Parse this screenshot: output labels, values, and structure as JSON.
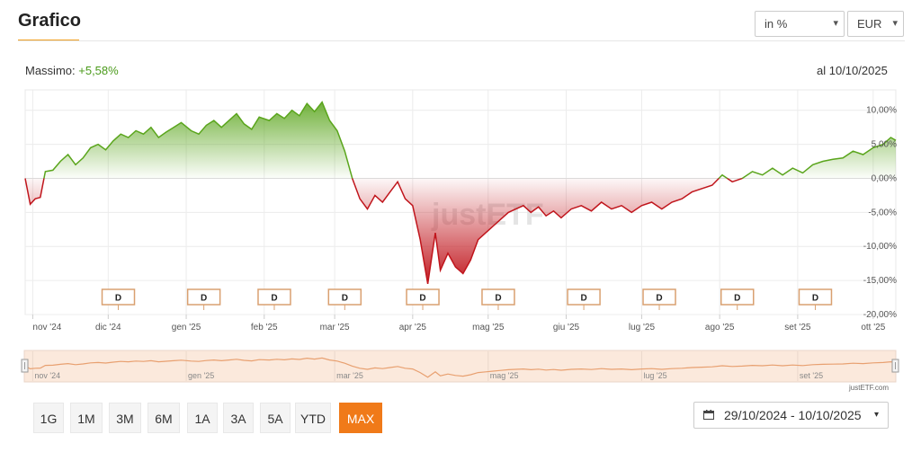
{
  "header": {
    "title": "Grafico"
  },
  "controls": {
    "unit_select": "in %",
    "currency_select": "EUR",
    "chevron": "▾"
  },
  "summary": {
    "max_label": "Massimo:",
    "max_value": "+5,58%",
    "date_label": "al 10/10/2025"
  },
  "range_buttons": [
    "1G",
    "1M",
    "3M",
    "6M",
    "1A",
    "3A",
    "5A",
    "YTD",
    "MAX"
  ],
  "active_range": "MAX",
  "date_range": {
    "text": "29/10/2024 - 10/10/2025",
    "icon": "calendar-icon",
    "caret": "▾"
  },
  "credit": "justETF.com",
  "watermark": "justETF",
  "colors": {
    "positive": "#5aa51c",
    "negative": "#c0151c",
    "accent": "#f07a19",
    "navigator_line": "#e8a070"
  },
  "chart_data": {
    "type": "area",
    "y_axis_position": "right",
    "ylim": [
      -20,
      13
    ],
    "yticks": [
      10,
      5,
      0,
      -5,
      -10,
      -15,
      -20
    ],
    "ytick_labels": [
      "10,00%",
      "5,00%",
      "0,00%",
      "-5,00%",
      "-10,00%",
      "-15,00%",
      "-20,00%"
    ],
    "x_tick_labels": [
      "nov '24",
      "dic '24",
      "gen '25",
      "feb '25",
      "mar '25",
      "apr '25",
      "mag '25",
      "giu '25",
      "lug '25",
      "ago '25",
      "set '25",
      "ott '25"
    ],
    "x_tick_dates": [
      "2024-11-01",
      "2024-12-01",
      "2025-01-01",
      "2025-02-01",
      "2025-03-01",
      "2025-04-01",
      "2025-05-01",
      "2025-06-01",
      "2025-07-01",
      "2025-08-01",
      "2025-09-01",
      "2025-10-01"
    ],
    "x_range": [
      "2024-10-29",
      "2025-10-10"
    ],
    "grid": true,
    "baseline": 0,
    "dividend_label": "D",
    "dividend_dates": [
      "2024-12-05",
      "2025-01-08",
      "2025-02-05",
      "2025-03-05",
      "2025-04-05",
      "2025-05-05",
      "2025-06-08",
      "2025-07-08",
      "2025-08-08",
      "2025-09-08"
    ],
    "series": [
      {
        "points": [
          [
            "2024-10-29",
            0.0
          ],
          [
            "2024-10-31",
            -3.8
          ],
          [
            "2024-11-02",
            -3.0
          ],
          [
            "2024-11-04",
            -2.8
          ],
          [
            "2024-11-06",
            1.0
          ],
          [
            "2024-11-09",
            1.2
          ],
          [
            "2024-11-12",
            2.5
          ],
          [
            "2024-11-15",
            3.5
          ],
          [
            "2024-11-18",
            2.0
          ],
          [
            "2024-11-21",
            3.0
          ],
          [
            "2024-11-24",
            4.5
          ],
          [
            "2024-11-27",
            5.0
          ],
          [
            "2024-11-30",
            4.2
          ],
          [
            "2024-12-03",
            5.5
          ],
          [
            "2024-12-06",
            6.5
          ],
          [
            "2024-12-09",
            6.0
          ],
          [
            "2024-12-12",
            7.0
          ],
          [
            "2024-12-15",
            6.5
          ],
          [
            "2024-12-18",
            7.5
          ],
          [
            "2024-12-21",
            6.0
          ],
          [
            "2024-12-24",
            6.8
          ],
          [
            "2024-12-27",
            7.5
          ],
          [
            "2024-12-30",
            8.2
          ],
          [
            "2025-01-03",
            7.0
          ],
          [
            "2025-01-06",
            6.5
          ],
          [
            "2025-01-09",
            7.8
          ],
          [
            "2025-01-12",
            8.5
          ],
          [
            "2025-01-15",
            7.5
          ],
          [
            "2025-01-18",
            8.5
          ],
          [
            "2025-01-21",
            9.5
          ],
          [
            "2025-01-24",
            8.0
          ],
          [
            "2025-01-27",
            7.2
          ],
          [
            "2025-01-30",
            9.0
          ],
          [
            "2025-02-03",
            8.5
          ],
          [
            "2025-02-06",
            9.5
          ],
          [
            "2025-02-09",
            8.8
          ],
          [
            "2025-02-12",
            10.0
          ],
          [
            "2025-02-15",
            9.2
          ],
          [
            "2025-02-18",
            11.0
          ],
          [
            "2025-02-21",
            9.8
          ],
          [
            "2025-02-24",
            11.2
          ],
          [
            "2025-02-27",
            8.5
          ],
          [
            "2025-03-02",
            7.0
          ],
          [
            "2025-03-05",
            4.0
          ],
          [
            "2025-03-08",
            0.0
          ],
          [
            "2025-03-11",
            -3.0
          ],
          [
            "2025-03-14",
            -4.5
          ],
          [
            "2025-03-17",
            -2.5
          ],
          [
            "2025-03-20",
            -3.5
          ],
          [
            "2025-03-23",
            -2.0
          ],
          [
            "2025-03-26",
            -0.5
          ],
          [
            "2025-03-29",
            -3.0
          ],
          [
            "2025-04-01",
            -4.0
          ],
          [
            "2025-04-04",
            -9.0
          ],
          [
            "2025-04-07",
            -15.5
          ],
          [
            "2025-04-10",
            -8.0
          ],
          [
            "2025-04-12",
            -13.5
          ],
          [
            "2025-04-15",
            -11.0
          ],
          [
            "2025-04-18",
            -13.0
          ],
          [
            "2025-04-21",
            -14.0
          ],
          [
            "2025-04-24",
            -12.0
          ],
          [
            "2025-04-27",
            -9.0
          ],
          [
            "2025-04-30",
            -8.0
          ],
          [
            "2025-05-03",
            -7.0
          ],
          [
            "2025-05-06",
            -6.0
          ],
          [
            "2025-05-09",
            -5.0
          ],
          [
            "2025-05-12",
            -4.5
          ],
          [
            "2025-05-15",
            -4.0
          ],
          [
            "2025-05-18",
            -5.0
          ],
          [
            "2025-05-21",
            -4.2
          ],
          [
            "2025-05-24",
            -5.5
          ],
          [
            "2025-05-27",
            -4.8
          ],
          [
            "2025-05-30",
            -5.8
          ],
          [
            "2025-06-03",
            -4.5
          ],
          [
            "2025-06-07",
            -4.0
          ],
          [
            "2025-06-11",
            -4.8
          ],
          [
            "2025-06-15",
            -3.5
          ],
          [
            "2025-06-19",
            -4.5
          ],
          [
            "2025-06-23",
            -4.0
          ],
          [
            "2025-06-27",
            -5.0
          ],
          [
            "2025-07-01",
            -4.0
          ],
          [
            "2025-07-05",
            -3.5
          ],
          [
            "2025-07-09",
            -4.5
          ],
          [
            "2025-07-13",
            -3.5
          ],
          [
            "2025-07-17",
            -3.0
          ],
          [
            "2025-07-21",
            -2.0
          ],
          [
            "2025-07-25",
            -1.5
          ],
          [
            "2025-07-29",
            -1.0
          ],
          [
            "2025-08-02",
            0.5
          ],
          [
            "2025-08-06",
            -0.5
          ],
          [
            "2025-08-10",
            0.0
          ],
          [
            "2025-08-14",
            1.0
          ],
          [
            "2025-08-18",
            0.5
          ],
          [
            "2025-08-22",
            1.5
          ],
          [
            "2025-08-26",
            0.5
          ],
          [
            "2025-08-30",
            1.5
          ],
          [
            "2025-09-03",
            0.8
          ],
          [
            "2025-09-07",
            2.0
          ],
          [
            "2025-09-11",
            2.5
          ],
          [
            "2025-09-15",
            2.8
          ],
          [
            "2025-09-19",
            3.0
          ],
          [
            "2025-09-23",
            4.0
          ],
          [
            "2025-09-27",
            3.5
          ],
          [
            "2025-10-01",
            4.5
          ],
          [
            "2025-10-05",
            5.0
          ],
          [
            "2025-10-08",
            6.0
          ],
          [
            "2025-10-10",
            5.58
          ]
        ]
      }
    ]
  },
  "navigator": {
    "x_tick_labels": [
      "nov '24",
      "gen '25",
      "mar '25",
      "mag '25",
      "lug '25",
      "set '25"
    ],
    "x_tick_dates": [
      "2024-11-01",
      "2025-01-01",
      "2025-03-01",
      "2025-05-01",
      "2025-07-01",
      "2025-09-01"
    ]
  }
}
